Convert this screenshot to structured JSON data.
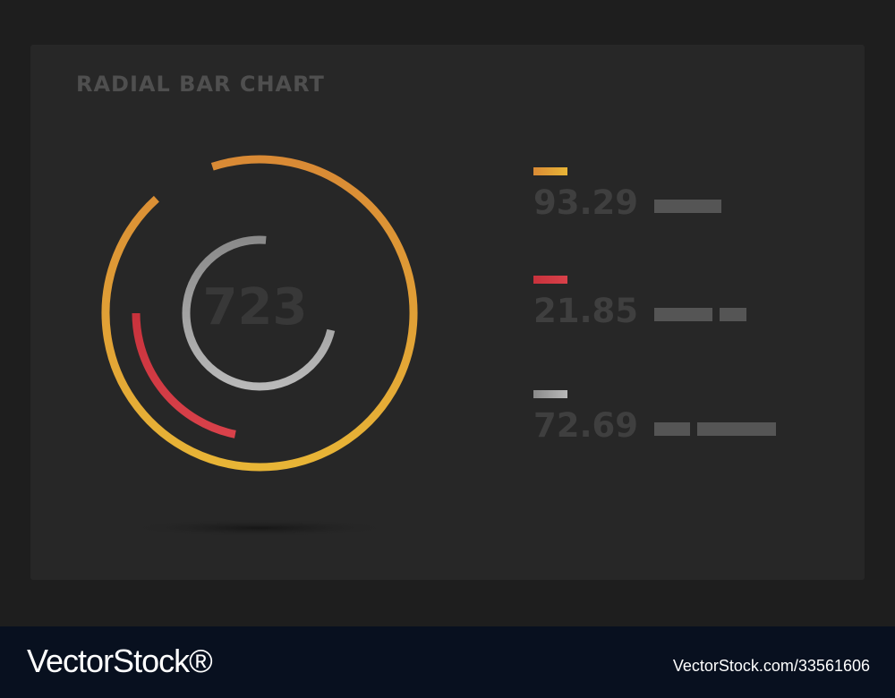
{
  "chart_data": {
    "type": "radial-bar",
    "title": "RADIAL BAR CHART",
    "center_value": "723",
    "series": [
      {
        "name": "",
        "value": 93.29,
        "label": "93.29",
        "color": "#e8b536",
        "color_start": "#d98a35"
      },
      {
        "name": "",
        "value": 21.85,
        "label": "21.85",
        "color": "#d9414a",
        "color_start": "#c8323c"
      },
      {
        "name": "",
        "value": 72.69,
        "label": "72.69",
        "color": "#b9b9b9",
        "color_start": "#8a8a8a"
      }
    ],
    "legend_placement": "right"
  },
  "watermark": {
    "brand": "VectorStock®",
    "id": "VectorStock.com/33561606"
  }
}
